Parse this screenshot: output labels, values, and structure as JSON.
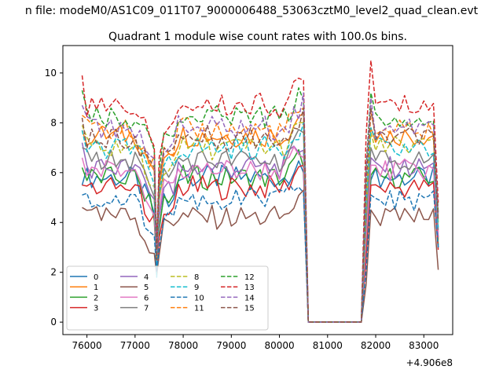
{
  "figure": {
    "suptitle": "n file: modeM0/AS1C09_011T07_9000006488_53063cztM0_level2_quad_clean.evt"
  },
  "chart_data": {
    "type": "line",
    "title": "Quadrant 1 module wise count rates with 100.0s bins.",
    "xlabel": "",
    "ylabel": "",
    "x_offset_label": "+4.906e8",
    "xlim": [
      75500,
      83600
    ],
    "ylim": [
      -0.5,
      11.1
    ],
    "xticks": [
      76000,
      77000,
      78000,
      79000,
      80000,
      81000,
      82000,
      83000
    ],
    "xtick_labels": [
      "76000",
      "77000",
      "78000",
      "79000",
      "80000",
      "81000",
      "82000",
      "83000"
    ],
    "yticks": [
      0,
      2,
      4,
      6,
      8,
      10
    ],
    "ytick_labels": [
      "0",
      "2",
      "4",
      "6",
      "8",
      "10"
    ],
    "grid": false,
    "legend_location": "lower-left",
    "legend_columns": 4,
    "segments": [
      {
        "start": 75900,
        "end": 77400
      },
      {
        "start": 77500,
        "end": 80500
      },
      {
        "start": 81900,
        "end": 83300
      }
    ],
    "gap": {
      "start": 80600,
      "end": 81700,
      "value": 0
    },
    "series": [
      {
        "name": "0",
        "color": "#1f77b4",
        "dash": "solid",
        "base": 5.8,
        "dip_min": 2.1,
        "end_value": 3.0,
        "start_value": 5.5,
        "seg2_start": 4.9,
        "seg3_start": 5.7,
        "peak_value": 6.0
      },
      {
        "name": "1",
        "color": "#ff7f0e",
        "dash": "solid",
        "base": 7.5,
        "dip_min": 2.5,
        "end_value": 3.3,
        "start_value": 7.7,
        "seg2_start": 6.6,
        "seg3_start": 7.8,
        "peak_value": 8.4
      },
      {
        "name": "2",
        "color": "#2ca02c",
        "dash": "solid",
        "base": 5.8,
        "dip_min": 2.2,
        "end_value": 3.1,
        "start_value": 6.2,
        "seg2_start": 5.0,
        "seg3_start": 5.9,
        "peak_value": 6.2
      },
      {
        "name": "3",
        "color": "#d62728",
        "dash": "solid",
        "base": 5.4,
        "dip_min": 2.0,
        "end_value": 2.9,
        "start_value": 5.5,
        "seg2_start": 4.6,
        "seg3_start": 5.5,
        "peak_value": 6.3
      },
      {
        "name": "4",
        "color": "#9467bd",
        "dash": "solid",
        "base": 6.2,
        "dip_min": 2.4,
        "end_value": 3.4,
        "start_value": 7.2,
        "seg2_start": 5.4,
        "seg3_start": 6.6,
        "peak_value": 6.9
      },
      {
        "name": "5",
        "color": "#8c564b",
        "dash": "solid",
        "base": 4.2,
        "dip_min": 1.9,
        "end_value": 2.1,
        "start_value": 4.6,
        "seg2_start": 3.9,
        "seg3_start": 4.5,
        "peak_value": 5.3
      },
      {
        "name": "6",
        "color": "#e377c2",
        "dash": "solid",
        "base": 6.1,
        "dip_min": 2.3,
        "end_value": 3.6,
        "start_value": 6.6,
        "seg2_start": 5.6,
        "seg3_start": 6.3,
        "peak_value": 6.6
      },
      {
        "name": "7",
        "color": "#7f7f7f",
        "dash": "solid",
        "base": 6.5,
        "dip_min": 2.5,
        "end_value": 3.7,
        "start_value": 7.0,
        "seg2_start": 6.1,
        "seg3_start": 7.0,
        "peak_value": 7.6
      },
      {
        "name": "8",
        "color": "#bcbd22",
        "dash": "dashed",
        "base": 7.0,
        "dip_min": 2.6,
        "end_value": 4.0,
        "start_value": 7.9,
        "seg2_start": 6.2,
        "seg3_start": 7.6,
        "peak_value": 8.0
      },
      {
        "name": "9",
        "color": "#17becf",
        "dash": "dashed",
        "base": 7.0,
        "dip_min": 1.8,
        "end_value": 3.8,
        "start_value": 7.7,
        "seg2_start": 6.4,
        "seg3_start": 7.8,
        "peak_value": 8.0
      },
      {
        "name": "10",
        "color": "#1f77b4",
        "dash": "dashed",
        "base": 4.9,
        "dip_min": 2.0,
        "end_value": 3.0,
        "start_value": 5.1,
        "seg2_start": 4.2,
        "seg3_start": 5.1,
        "peak_value": 5.2
      },
      {
        "name": "11",
        "color": "#ff7f0e",
        "dash": "dashed",
        "base": 7.7,
        "dip_min": 2.6,
        "end_value": 4.2,
        "start_value": 8.3,
        "seg2_start": 6.8,
        "seg3_start": 8.4,
        "peak_value": 8.6
      },
      {
        "name": "12",
        "color": "#2ca02c",
        "dash": "dashed",
        "base": 8.2,
        "dip_min": 2.8,
        "end_value": 4.4,
        "start_value": 9.3,
        "seg2_start": 7.3,
        "seg3_start": 9.2,
        "peak_value": 8.9
      },
      {
        "name": "13",
        "color": "#d62728",
        "dash": "dashed",
        "base": 8.7,
        "dip_min": 2.9,
        "end_value": 4.8,
        "start_value": 9.9,
        "seg2_start": 7.8,
        "seg3_start": 10.5,
        "peak_value": 9.7
      },
      {
        "name": "14",
        "color": "#9467bd",
        "dash": "dashed",
        "base": 7.8,
        "dip_min": 2.7,
        "end_value": 4.3,
        "start_value": 8.7,
        "seg2_start": 7.0,
        "seg3_start": 9.0,
        "peak_value": 9.2
      },
      {
        "name": "15",
        "color": "#8c564b",
        "dash": "dashed",
        "base": 7.4,
        "dip_min": 2.5,
        "end_value": 4.1,
        "start_value": 8.2,
        "seg2_start": 6.9,
        "seg3_start": 8.6,
        "peak_value": 8.6
      }
    ]
  }
}
